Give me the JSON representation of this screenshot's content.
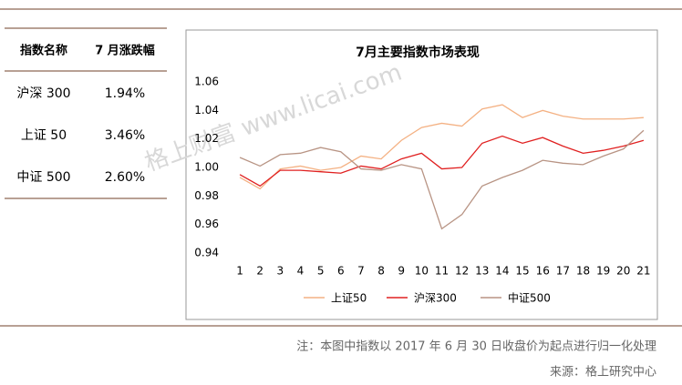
{
  "table": {
    "header": [
      "指数名称",
      "7 月涨跌幅"
    ],
    "rows": [
      [
        "沪深 300",
        "1.94%"
      ],
      [
        "上证 50",
        "3.46%"
      ],
      [
        "中证 500",
        "2.60%"
      ]
    ]
  },
  "watermark": "格上财富 www.licai.com",
  "chart_data": {
    "type": "line",
    "title": "7月主要指数市场表现",
    "x": [
      1,
      2,
      3,
      4,
      5,
      6,
      7,
      8,
      9,
      10,
      11,
      12,
      13,
      14,
      15,
      16,
      17,
      18,
      19,
      20,
      21
    ],
    "xlim": [
      0.5,
      21.5
    ],
    "ylim": [
      0.94,
      1.06
    ],
    "yticks": [
      0.94,
      0.96,
      0.98,
      {
        "value": 1.0,
        "label": "1.00"
      },
      1.02,
      1.04,
      1.06
    ],
    "grid": false,
    "legend": "bottom",
    "series": [
      {
        "name": "上证50",
        "color": "#f4b183",
        "values": [
          0.993,
          0.985,
          0.999,
          1.001,
          0.998,
          1.0,
          1.008,
          1.006,
          1.019,
          1.028,
          1.031,
          1.029,
          1.041,
          1.044,
          1.035,
          1.04,
          1.036,
          1.034,
          1.034,
          1.034,
          1.035
        ]
      },
      {
        "name": "沪深300",
        "color": "#e02020",
        "values": [
          0.995,
          0.987,
          0.998,
          0.998,
          0.997,
          0.996,
          1.001,
          0.999,
          1.006,
          1.01,
          0.999,
          1.0,
          1.017,
          1.022,
          1.017,
          1.021,
          1.015,
          1.01,
          1.012,
          1.015,
          1.019
        ]
      },
      {
        "name": "中证500",
        "color": "#b89484",
        "values": [
          1.007,
          1.001,
          1.009,
          1.01,
          1.014,
          1.011,
          0.999,
          0.998,
          1.002,
          0.999,
          0.957,
          0.967,
          0.987,
          0.993,
          0.998,
          1.005,
          1.003,
          1.002,
          1.008,
          1.013,
          1.026
        ]
      }
    ],
    "note": "注：本图中指数以 2017 年 6 月 30 日收盘价为起点进行归一化处理",
    "source": "来源：格上研究中心"
  }
}
